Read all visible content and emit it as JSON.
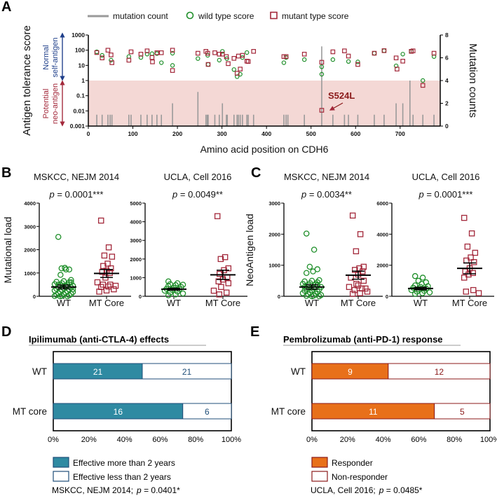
{
  "panel_labels": {
    "a": "A",
    "b": "B",
    "c": "C",
    "d": "D",
    "e": "E"
  },
  "colors": {
    "wild": "#1f8f2a",
    "mutant": "#a3283a",
    "bar": "#9a9a9a",
    "band": "#f4d8d5",
    "teal": "#2f8aa2",
    "teal_outline": "#1f4e79",
    "orange": "#e8701a",
    "darkred": "#8b1a1a",
    "normal": "#1f3f8a",
    "neo": "#a3283a"
  },
  "chart_data": [
    {
      "id": "A",
      "type": "scatter",
      "xlabel": "Amino acid position on CDH6",
      "ylabel": "Antigen tolerance score",
      "y2label": "Mutation counts",
      "xlim": [
        0,
        790
      ],
      "xticks": [
        0,
        100,
        200,
        300,
        400,
        500,
        600,
        700
      ],
      "yscale": "log",
      "ylim": [
        0.001,
        1000
      ],
      "yticks": [
        "0.001",
        "0.01",
        "0.1",
        "1",
        "10",
        "100",
        "1000"
      ],
      "y2lim": [
        0,
        8
      ],
      "y2ticks": [
        0,
        2,
        4,
        6,
        8
      ],
      "legend": {
        "mutation": "mutation count",
        "wild": "wild type score",
        "mutant": "mutant type score"
      },
      "region_labels": {
        "normal_1": "Normal",
        "normal_2": "self-antigen",
        "neo_1": "Potential",
        "neo_2": "neo-antigen"
      },
      "annotation": "S524L",
      "mutation_counts": [
        [
          19,
          1
        ],
        [
          31,
          1
        ],
        [
          44,
          1
        ],
        [
          49,
          1
        ],
        [
          53,
          1
        ],
        [
          91,
          1
        ],
        [
          96,
          1
        ],
        [
          118,
          1
        ],
        [
          132,
          1
        ],
        [
          143,
          1
        ],
        [
          154,
          1
        ],
        [
          164,
          1
        ],
        [
          189,
          2
        ],
        [
          246,
          3
        ],
        [
          264,
          1
        ],
        [
          267,
          1
        ],
        [
          269,
          1
        ],
        [
          284,
          1
        ],
        [
          294,
          1
        ],
        [
          301,
          2
        ],
        [
          310,
          1
        ],
        [
          312,
          1
        ],
        [
          327,
          1
        ],
        [
          334,
          1
        ],
        [
          337,
          1
        ],
        [
          341,
          1
        ],
        [
          346,
          1
        ],
        [
          356,
          1
        ],
        [
          359,
          1
        ],
        [
          371,
          1
        ],
        [
          439,
          1
        ],
        [
          444,
          1
        ],
        [
          448,
          1
        ],
        [
          485,
          1
        ],
        [
          524,
          7
        ],
        [
          549,
          1
        ],
        [
          575,
          1
        ],
        [
          584,
          1
        ],
        [
          605,
          1
        ],
        [
          642,
          1
        ],
        [
          664,
          1
        ],
        [
          691,
          2
        ],
        [
          706,
          2
        ],
        [
          722,
          4
        ],
        [
          729,
          1
        ],
        [
          751,
          1
        ],
        [
          776,
          1
        ]
      ],
      "wild_type": [
        [
          19,
          78
        ],
        [
          31,
          46
        ],
        [
          51,
          22
        ],
        [
          91,
          38
        ],
        [
          118,
          33
        ],
        [
          132,
          55
        ],
        [
          143,
          59
        ],
        [
          154,
          60
        ],
        [
          164,
          15
        ],
        [
          189,
          63
        ],
        [
          189,
          10
        ],
        [
          246,
          28
        ],
        [
          268,
          46
        ],
        [
          269,
          11.5
        ],
        [
          301,
          84
        ],
        [
          311,
          28
        ],
        [
          294,
          22
        ],
        [
          327,
          5.3
        ],
        [
          334,
          1.8
        ],
        [
          341,
          2.6
        ],
        [
          346,
          33
        ],
        [
          356,
          70
        ],
        [
          439,
          15
        ],
        [
          444,
          33
        ],
        [
          485,
          24
        ],
        [
          524,
          2.6
        ],
        [
          524,
          8
        ],
        [
          549,
          24
        ],
        [
          584,
          18
        ],
        [
          605,
          17
        ],
        [
          642,
          63
        ],
        [
          664,
          93
        ],
        [
          691,
          9.3
        ],
        [
          706,
          55
        ],
        [
          725,
          84
        ],
        [
          751,
          1
        ],
        [
          776,
          38
        ]
      ],
      "mutant_type": [
        [
          19,
          70
        ],
        [
          31,
          31
        ],
        [
          44,
          100
        ],
        [
          51,
          49
        ],
        [
          53,
          15
        ],
        [
          91,
          22
        ],
        [
          96,
          78
        ],
        [
          118,
          55
        ],
        [
          132,
          90
        ],
        [
          143,
          33
        ],
        [
          144,
          17
        ],
        [
          154,
          68
        ],
        [
          164,
          68
        ],
        [
          189,
          100
        ],
        [
          189,
          4.6
        ],
        [
          246,
          63
        ],
        [
          264,
          84
        ],
        [
          268,
          63
        ],
        [
          269,
          11.5
        ],
        [
          284,
          68
        ],
        [
          301,
          55
        ],
        [
          294,
          55
        ],
        [
          310,
          38
        ],
        [
          314,
          13
        ],
        [
          327,
          29
        ],
        [
          334,
          3
        ],
        [
          337,
          41
        ],
        [
          341,
          5.7
        ],
        [
          346,
          46
        ],
        [
          356,
          19
        ],
        [
          359,
          18
        ],
        [
          371,
          84
        ],
        [
          439,
          38
        ],
        [
          444,
          38
        ],
        [
          485,
          55
        ],
        [
          524,
          16
        ],
        [
          549,
          78
        ],
        [
          575,
          90
        ],
        [
          584,
          41
        ],
        [
          605,
          11.5
        ],
        [
          642,
          63
        ],
        [
          664,
          93
        ],
        [
          691,
          31
        ],
        [
          693,
          5.7
        ],
        [
          706,
          19
        ],
        [
          725,
          84
        ],
        [
          729,
          90
        ],
        [
          751,
          0.48
        ],
        [
          776,
          63
        ],
        [
          524,
          0.011
        ]
      ]
    },
    {
      "id": "B1",
      "type": "scatter",
      "title": "MSKCC, NEJM 2014",
      "pvalue": "= 0.0001***",
      "ylabel": "Mutational load",
      "ylim": [
        0,
        4000
      ],
      "yticks": [
        0,
        1000,
        2000,
        3000,
        4000
      ],
      "categories": [
        "WT",
        "MT Core"
      ],
      "groups": [
        {
          "values": [
            2550,
            1150,
            1200,
            1150,
            1220,
            920,
            700,
            650,
            620,
            600,
            560,
            520,
            500,
            480,
            450,
            430,
            400,
            380,
            350,
            320,
            300,
            280,
            250,
            220,
            200,
            180,
            150,
            120,
            100,
            80,
            60,
            40,
            20,
            10,
            0,
            0,
            300,
            450,
            500,
            600
          ],
          "mean": 400,
          "sem": 80
        },
        {
          "values": [
            3250,
            2100,
            1750,
            1700,
            1400,
            1300,
            1200,
            1100,
            1050,
            1000,
            800,
            600,
            500,
            500,
            450,
            420,
            400,
            300,
            250,
            200
          ],
          "mean": 980,
          "sem": 170
        }
      ]
    },
    {
      "id": "B2",
      "type": "scatter",
      "title": "UCLA, Cell 2016",
      "pvalue": "= 0.0049**",
      "ylim": [
        0,
        5000
      ],
      "yticks": [
        0,
        1000,
        2000,
        3000,
        4000,
        5000
      ],
      "categories": [
        "WT",
        "MT Core"
      ],
      "groups": [
        {
          "values": [
            800,
            700,
            650,
            620,
            600,
            550,
            500,
            450,
            400,
            380,
            350,
            300,
            250,
            200,
            150,
            100,
            50
          ],
          "mean": 380,
          "sem": 50
        },
        {
          "values": [
            4300,
            2100,
            2000,
            1500,
            1400,
            1200,
            1000,
            900,
            800,
            700,
            500,
            300,
            200,
            100
          ],
          "mean": 1150,
          "sem": 250
        }
      ]
    },
    {
      "id": "C1",
      "type": "scatter",
      "title": "MSKCC, NEJM 2014",
      "pvalue": "= 0.0034**",
      "ylabel": "NeoAntigen load",
      "ylim": [
        0,
        3000
      ],
      "yticks": [
        0,
        1000,
        2000,
        3000
      ],
      "categories": [
        "WT",
        "MT Core"
      ],
      "groups": [
        {
          "values": [
            2020,
            1500,
            950,
            870,
            800,
            750,
            520,
            500,
            480,
            450,
            420,
            400,
            380,
            350,
            300,
            280,
            250,
            220,
            200,
            180,
            150,
            120,
            100,
            80,
            60,
            40,
            20,
            10,
            0,
            0,
            300,
            350
          ],
          "mean": 300,
          "sem": 70
        },
        {
          "values": [
            2600,
            2000,
            1450,
            950,
            900,
            850,
            800,
            700,
            600,
            500,
            400,
            300,
            250,
            200,
            150,
            100,
            80,
            250,
            350
          ],
          "mean": 680,
          "sem": 130
        }
      ]
    },
    {
      "id": "C2",
      "type": "scatter",
      "title": "UCLA, Cell 2016",
      "pvalue": "= 0.0001***",
      "ylim": [
        0,
        6000
      ],
      "yticks": [
        0,
        2000,
        4000,
        6000
      ],
      "categories": [
        "WT",
        "MT Core"
      ],
      "groups": [
        {
          "values": [
            1300,
            1200,
            1000,
            900,
            800,
            700,
            650,
            600,
            550,
            500,
            450,
            400,
            350,
            300,
            250,
            200,
            150
          ],
          "mean": 500,
          "sem": 80
        },
        {
          "values": [
            5050,
            4050,
            3200,
            2800,
            2500,
            2300,
            2200,
            1800,
            1600,
            1500,
            1400,
            1200,
            400,
            300,
            200
          ],
          "mean": 1800,
          "sem": 350
        }
      ]
    },
    {
      "id": "D",
      "type": "bar",
      "orientation": "horizontal-stacked",
      "title": "Ipilimumab (anti-CTLA-4) effects",
      "categories": [
        "WT",
        "MT core"
      ],
      "series": [
        {
          "name": "Effective more than 2 years",
          "values": [
            21,
            16
          ]
        },
        {
          "name": "Effective less than 2 years",
          "values": [
            21,
            6
          ]
        }
      ],
      "xticks": [
        "0%",
        "20%",
        "40%",
        "60%",
        "80%",
        "100%"
      ],
      "footnote": "MSKCC, NEJM 2014;",
      "pvalue": "= 0.0401*"
    },
    {
      "id": "E",
      "type": "bar",
      "orientation": "horizontal-stacked",
      "title": "Pembrolizumab (anti-PD-1) response",
      "categories": [
        "WT",
        "MT core"
      ],
      "series": [
        {
          "name": "Responder",
          "values": [
            9,
            11
          ]
        },
        {
          "name": "Non-responder",
          "values": [
            12,
            5
          ]
        }
      ],
      "xticks": [
        "0%",
        "20%",
        "40%",
        "60%",
        "80%",
        "100%"
      ],
      "footnote": "UCLA, Cell 2016;",
      "pvalue": "= 0.0485*"
    }
  ],
  "p_symbol": "p"
}
